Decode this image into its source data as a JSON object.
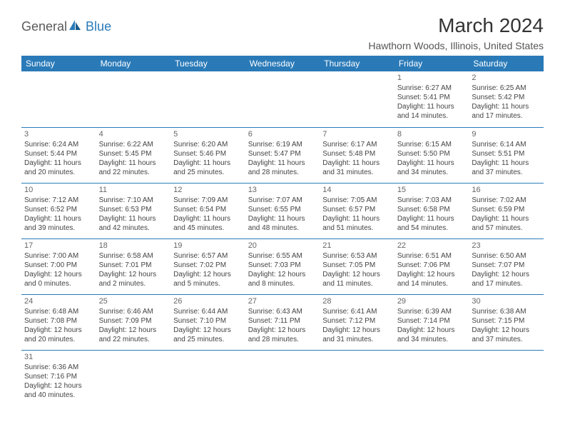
{
  "logo": {
    "text_general": "General",
    "text_blue": "Blue"
  },
  "title": "March 2024",
  "location": "Hawthorn Woods, Illinois, United States",
  "colors": {
    "header_bg": "#2a7ab8",
    "header_text": "#ffffff",
    "border": "#2a7ab8",
    "text": "#444444",
    "title_text": "#333333"
  },
  "day_headers": [
    "Sunday",
    "Monday",
    "Tuesday",
    "Wednesday",
    "Thursday",
    "Friday",
    "Saturday"
  ],
  "weeks": [
    [
      null,
      null,
      null,
      null,
      null,
      {
        "day": "1",
        "sunrise": "Sunrise: 6:27 AM",
        "sunset": "Sunset: 5:41 PM",
        "daylight": "Daylight: 11 hours and 14 minutes."
      },
      {
        "day": "2",
        "sunrise": "Sunrise: 6:25 AM",
        "sunset": "Sunset: 5:42 PM",
        "daylight": "Daylight: 11 hours and 17 minutes."
      }
    ],
    [
      {
        "day": "3",
        "sunrise": "Sunrise: 6:24 AM",
        "sunset": "Sunset: 5:44 PM",
        "daylight": "Daylight: 11 hours and 20 minutes."
      },
      {
        "day": "4",
        "sunrise": "Sunrise: 6:22 AM",
        "sunset": "Sunset: 5:45 PM",
        "daylight": "Daylight: 11 hours and 22 minutes."
      },
      {
        "day": "5",
        "sunrise": "Sunrise: 6:20 AM",
        "sunset": "Sunset: 5:46 PM",
        "daylight": "Daylight: 11 hours and 25 minutes."
      },
      {
        "day": "6",
        "sunrise": "Sunrise: 6:19 AM",
        "sunset": "Sunset: 5:47 PM",
        "daylight": "Daylight: 11 hours and 28 minutes."
      },
      {
        "day": "7",
        "sunrise": "Sunrise: 6:17 AM",
        "sunset": "Sunset: 5:48 PM",
        "daylight": "Daylight: 11 hours and 31 minutes."
      },
      {
        "day": "8",
        "sunrise": "Sunrise: 6:15 AM",
        "sunset": "Sunset: 5:50 PM",
        "daylight": "Daylight: 11 hours and 34 minutes."
      },
      {
        "day": "9",
        "sunrise": "Sunrise: 6:14 AM",
        "sunset": "Sunset: 5:51 PM",
        "daylight": "Daylight: 11 hours and 37 minutes."
      }
    ],
    [
      {
        "day": "10",
        "sunrise": "Sunrise: 7:12 AM",
        "sunset": "Sunset: 6:52 PM",
        "daylight": "Daylight: 11 hours and 39 minutes."
      },
      {
        "day": "11",
        "sunrise": "Sunrise: 7:10 AM",
        "sunset": "Sunset: 6:53 PM",
        "daylight": "Daylight: 11 hours and 42 minutes."
      },
      {
        "day": "12",
        "sunrise": "Sunrise: 7:09 AM",
        "sunset": "Sunset: 6:54 PM",
        "daylight": "Daylight: 11 hours and 45 minutes."
      },
      {
        "day": "13",
        "sunrise": "Sunrise: 7:07 AM",
        "sunset": "Sunset: 6:55 PM",
        "daylight": "Daylight: 11 hours and 48 minutes."
      },
      {
        "day": "14",
        "sunrise": "Sunrise: 7:05 AM",
        "sunset": "Sunset: 6:57 PM",
        "daylight": "Daylight: 11 hours and 51 minutes."
      },
      {
        "day": "15",
        "sunrise": "Sunrise: 7:03 AM",
        "sunset": "Sunset: 6:58 PM",
        "daylight": "Daylight: 11 hours and 54 minutes."
      },
      {
        "day": "16",
        "sunrise": "Sunrise: 7:02 AM",
        "sunset": "Sunset: 6:59 PM",
        "daylight": "Daylight: 11 hours and 57 minutes."
      }
    ],
    [
      {
        "day": "17",
        "sunrise": "Sunrise: 7:00 AM",
        "sunset": "Sunset: 7:00 PM",
        "daylight": "Daylight: 12 hours and 0 minutes."
      },
      {
        "day": "18",
        "sunrise": "Sunrise: 6:58 AM",
        "sunset": "Sunset: 7:01 PM",
        "daylight": "Daylight: 12 hours and 2 minutes."
      },
      {
        "day": "19",
        "sunrise": "Sunrise: 6:57 AM",
        "sunset": "Sunset: 7:02 PM",
        "daylight": "Daylight: 12 hours and 5 minutes."
      },
      {
        "day": "20",
        "sunrise": "Sunrise: 6:55 AM",
        "sunset": "Sunset: 7:03 PM",
        "daylight": "Daylight: 12 hours and 8 minutes."
      },
      {
        "day": "21",
        "sunrise": "Sunrise: 6:53 AM",
        "sunset": "Sunset: 7:05 PM",
        "daylight": "Daylight: 12 hours and 11 minutes."
      },
      {
        "day": "22",
        "sunrise": "Sunrise: 6:51 AM",
        "sunset": "Sunset: 7:06 PM",
        "daylight": "Daylight: 12 hours and 14 minutes."
      },
      {
        "day": "23",
        "sunrise": "Sunrise: 6:50 AM",
        "sunset": "Sunset: 7:07 PM",
        "daylight": "Daylight: 12 hours and 17 minutes."
      }
    ],
    [
      {
        "day": "24",
        "sunrise": "Sunrise: 6:48 AM",
        "sunset": "Sunset: 7:08 PM",
        "daylight": "Daylight: 12 hours and 20 minutes."
      },
      {
        "day": "25",
        "sunrise": "Sunrise: 6:46 AM",
        "sunset": "Sunset: 7:09 PM",
        "daylight": "Daylight: 12 hours and 22 minutes."
      },
      {
        "day": "26",
        "sunrise": "Sunrise: 6:44 AM",
        "sunset": "Sunset: 7:10 PM",
        "daylight": "Daylight: 12 hours and 25 minutes."
      },
      {
        "day": "27",
        "sunrise": "Sunrise: 6:43 AM",
        "sunset": "Sunset: 7:11 PM",
        "daylight": "Daylight: 12 hours and 28 minutes."
      },
      {
        "day": "28",
        "sunrise": "Sunrise: 6:41 AM",
        "sunset": "Sunset: 7:12 PM",
        "daylight": "Daylight: 12 hours and 31 minutes."
      },
      {
        "day": "29",
        "sunrise": "Sunrise: 6:39 AM",
        "sunset": "Sunset: 7:14 PM",
        "daylight": "Daylight: 12 hours and 34 minutes."
      },
      {
        "day": "30",
        "sunrise": "Sunrise: 6:38 AM",
        "sunset": "Sunset: 7:15 PM",
        "daylight": "Daylight: 12 hours and 37 minutes."
      }
    ],
    [
      {
        "day": "31",
        "sunrise": "Sunrise: 6:36 AM",
        "sunset": "Sunset: 7:16 PM",
        "daylight": "Daylight: 12 hours and 40 minutes."
      },
      null,
      null,
      null,
      null,
      null,
      null
    ]
  ]
}
